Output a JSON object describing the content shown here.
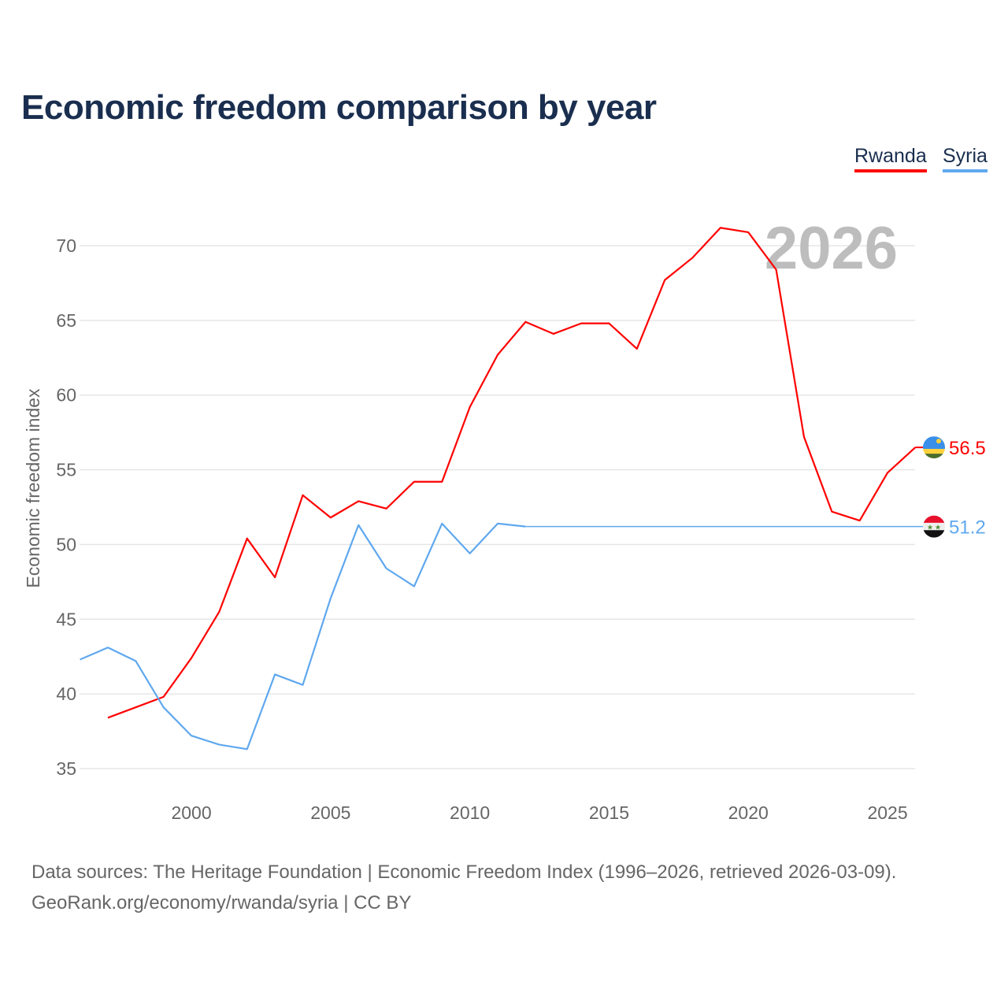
{
  "title": "Economic freedom comparison by year",
  "legend": [
    {
      "name": "Rwanda",
      "color": "#ff0000"
    },
    {
      "name": "Syria",
      "color": "#5fa8ef"
    }
  ],
  "year_label": "2026",
  "source_line1": "Data sources: The Heritage Foundation | Economic Freedom Index (1996–2026, retrieved 2026-03-09).",
  "source_line2": "GeoRank.org/economy/rwanda/syria | CC BY",
  "chart_data": {
    "type": "line",
    "title": "Economic freedom comparison by year",
    "xlabel": "",
    "ylabel": "Economic freedom index",
    "xlim": [
      1996,
      2026
    ],
    "ylim": [
      33,
      73
    ],
    "xticks": [
      2000,
      2005,
      2010,
      2015,
      2020,
      2025
    ],
    "yticks": [
      35,
      40,
      45,
      50,
      55,
      60,
      65,
      70
    ],
    "grid": true,
    "legend_position": "top-right",
    "series": [
      {
        "name": "Rwanda",
        "color": "#ff0000",
        "end_label": "56.5",
        "flag": "rwanda-flag",
        "x": [
          1997,
          1998,
          1999,
          2000,
          2001,
          2002,
          2003,
          2004,
          2005,
          2006,
          2007,
          2008,
          2009,
          2010,
          2011,
          2012,
          2013,
          2014,
          2015,
          2016,
          2017,
          2018,
          2019,
          2020,
          2021,
          2022,
          2023,
          2024,
          2025,
          2026
        ],
        "y": [
          38.4,
          39.1,
          39.8,
          42.4,
          45.5,
          50.4,
          47.8,
          53.3,
          51.8,
          52.9,
          52.4,
          54.2,
          54.2,
          59.2,
          62.7,
          64.9,
          64.1,
          64.8,
          64.8,
          63.1,
          67.7,
          69.2,
          71.2,
          70.9,
          68.4,
          57.2,
          52.2,
          51.6,
          54.8,
          56.5
        ]
      },
      {
        "name": "Syria",
        "color": "#5fa8ef",
        "end_label": "51.2",
        "flag": "syria-flag",
        "x": [
          1996,
          1997,
          1998,
          1999,
          2000,
          2001,
          2002,
          2003,
          2004,
          2005,
          2006,
          2007,
          2008,
          2009,
          2010,
          2011,
          2012
        ],
        "y": [
          42.3,
          43.1,
          42.2,
          39.1,
          37.2,
          36.6,
          36.3,
          41.3,
          40.6,
          46.4,
          51.3,
          48.4,
          47.2,
          51.4,
          49.4,
          51.4,
          51.2
        ],
        "carried_forward_to": 2026
      }
    ]
  }
}
